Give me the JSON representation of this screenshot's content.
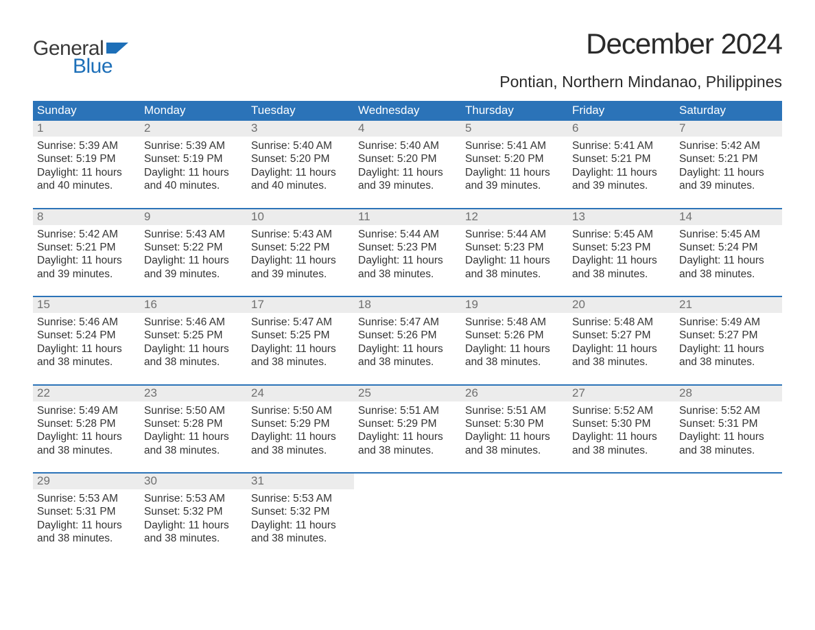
{
  "brand": {
    "word1": "General",
    "word2": "Blue",
    "word1_color": "#3a3a3a",
    "word2_color": "#1d6fb8",
    "flag_color": "#1d6fb8"
  },
  "title": "December 2024",
  "subtitle": "Pontian, Northern Mindanao, Philippines",
  "colors": {
    "header_bg": "#2b73b8",
    "header_text": "#ffffff",
    "daynum_bg": "#ececec",
    "daynum_text": "#6f6f6f",
    "body_text": "#333333",
    "week_divider": "#2b73b8",
    "page_bg": "#ffffff"
  },
  "day_labels": [
    "Sunday",
    "Monday",
    "Tuesday",
    "Wednesday",
    "Thursday",
    "Friday",
    "Saturday"
  ],
  "prefix": {
    "sunrise": "Sunrise: ",
    "sunset": "Sunset: ",
    "daylight": "Daylight: "
  },
  "weeks": [
    [
      {
        "n": "1",
        "sunrise": "5:39 AM",
        "sunset": "5:19 PM",
        "daylight1": "11 hours",
        "daylight2": "and 40 minutes."
      },
      {
        "n": "2",
        "sunrise": "5:39 AM",
        "sunset": "5:19 PM",
        "daylight1": "11 hours",
        "daylight2": "and 40 minutes."
      },
      {
        "n": "3",
        "sunrise": "5:40 AM",
        "sunset": "5:20 PM",
        "daylight1": "11 hours",
        "daylight2": "and 40 minutes."
      },
      {
        "n": "4",
        "sunrise": "5:40 AM",
        "sunset": "5:20 PM",
        "daylight1": "11 hours",
        "daylight2": "and 39 minutes."
      },
      {
        "n": "5",
        "sunrise": "5:41 AM",
        "sunset": "5:20 PM",
        "daylight1": "11 hours",
        "daylight2": "and 39 minutes."
      },
      {
        "n": "6",
        "sunrise": "5:41 AM",
        "sunset": "5:21 PM",
        "daylight1": "11 hours",
        "daylight2": "and 39 minutes."
      },
      {
        "n": "7",
        "sunrise": "5:42 AM",
        "sunset": "5:21 PM",
        "daylight1": "11 hours",
        "daylight2": "and 39 minutes."
      }
    ],
    [
      {
        "n": "8",
        "sunrise": "5:42 AM",
        "sunset": "5:21 PM",
        "daylight1": "11 hours",
        "daylight2": "and 39 minutes."
      },
      {
        "n": "9",
        "sunrise": "5:43 AM",
        "sunset": "5:22 PM",
        "daylight1": "11 hours",
        "daylight2": "and 39 minutes."
      },
      {
        "n": "10",
        "sunrise": "5:43 AM",
        "sunset": "5:22 PM",
        "daylight1": "11 hours",
        "daylight2": "and 39 minutes."
      },
      {
        "n": "11",
        "sunrise": "5:44 AM",
        "sunset": "5:23 PM",
        "daylight1": "11 hours",
        "daylight2": "and 38 minutes."
      },
      {
        "n": "12",
        "sunrise": "5:44 AM",
        "sunset": "5:23 PM",
        "daylight1": "11 hours",
        "daylight2": "and 38 minutes."
      },
      {
        "n": "13",
        "sunrise": "5:45 AM",
        "sunset": "5:23 PM",
        "daylight1": "11 hours",
        "daylight2": "and 38 minutes."
      },
      {
        "n": "14",
        "sunrise": "5:45 AM",
        "sunset": "5:24 PM",
        "daylight1": "11 hours",
        "daylight2": "and 38 minutes."
      }
    ],
    [
      {
        "n": "15",
        "sunrise": "5:46 AM",
        "sunset": "5:24 PM",
        "daylight1": "11 hours",
        "daylight2": "and 38 minutes."
      },
      {
        "n": "16",
        "sunrise": "5:46 AM",
        "sunset": "5:25 PM",
        "daylight1": "11 hours",
        "daylight2": "and 38 minutes."
      },
      {
        "n": "17",
        "sunrise": "5:47 AM",
        "sunset": "5:25 PM",
        "daylight1": "11 hours",
        "daylight2": "and 38 minutes."
      },
      {
        "n": "18",
        "sunrise": "5:47 AM",
        "sunset": "5:26 PM",
        "daylight1": "11 hours",
        "daylight2": "and 38 minutes."
      },
      {
        "n": "19",
        "sunrise": "5:48 AM",
        "sunset": "5:26 PM",
        "daylight1": "11 hours",
        "daylight2": "and 38 minutes."
      },
      {
        "n": "20",
        "sunrise": "5:48 AM",
        "sunset": "5:27 PM",
        "daylight1": "11 hours",
        "daylight2": "and 38 minutes."
      },
      {
        "n": "21",
        "sunrise": "5:49 AM",
        "sunset": "5:27 PM",
        "daylight1": "11 hours",
        "daylight2": "and 38 minutes."
      }
    ],
    [
      {
        "n": "22",
        "sunrise": "5:49 AM",
        "sunset": "5:28 PM",
        "daylight1": "11 hours",
        "daylight2": "and 38 minutes."
      },
      {
        "n": "23",
        "sunrise": "5:50 AM",
        "sunset": "5:28 PM",
        "daylight1": "11 hours",
        "daylight2": "and 38 minutes."
      },
      {
        "n": "24",
        "sunrise": "5:50 AM",
        "sunset": "5:29 PM",
        "daylight1": "11 hours",
        "daylight2": "and 38 minutes."
      },
      {
        "n": "25",
        "sunrise": "5:51 AM",
        "sunset": "5:29 PM",
        "daylight1": "11 hours",
        "daylight2": "and 38 minutes."
      },
      {
        "n": "26",
        "sunrise": "5:51 AM",
        "sunset": "5:30 PM",
        "daylight1": "11 hours",
        "daylight2": "and 38 minutes."
      },
      {
        "n": "27",
        "sunrise": "5:52 AM",
        "sunset": "5:30 PM",
        "daylight1": "11 hours",
        "daylight2": "and 38 minutes."
      },
      {
        "n": "28",
        "sunrise": "5:52 AM",
        "sunset": "5:31 PM",
        "daylight1": "11 hours",
        "daylight2": "and 38 minutes."
      }
    ],
    [
      {
        "n": "29",
        "sunrise": "5:53 AM",
        "sunset": "5:31 PM",
        "daylight1": "11 hours",
        "daylight2": "and 38 minutes."
      },
      {
        "n": "30",
        "sunrise": "5:53 AM",
        "sunset": "5:32 PM",
        "daylight1": "11 hours",
        "daylight2": "and 38 minutes."
      },
      {
        "n": "31",
        "sunrise": "5:53 AM",
        "sunset": "5:32 PM",
        "daylight1": "11 hours",
        "daylight2": "and 38 minutes."
      },
      {
        "empty": true
      },
      {
        "empty": true
      },
      {
        "empty": true
      },
      {
        "empty": true
      }
    ]
  ]
}
